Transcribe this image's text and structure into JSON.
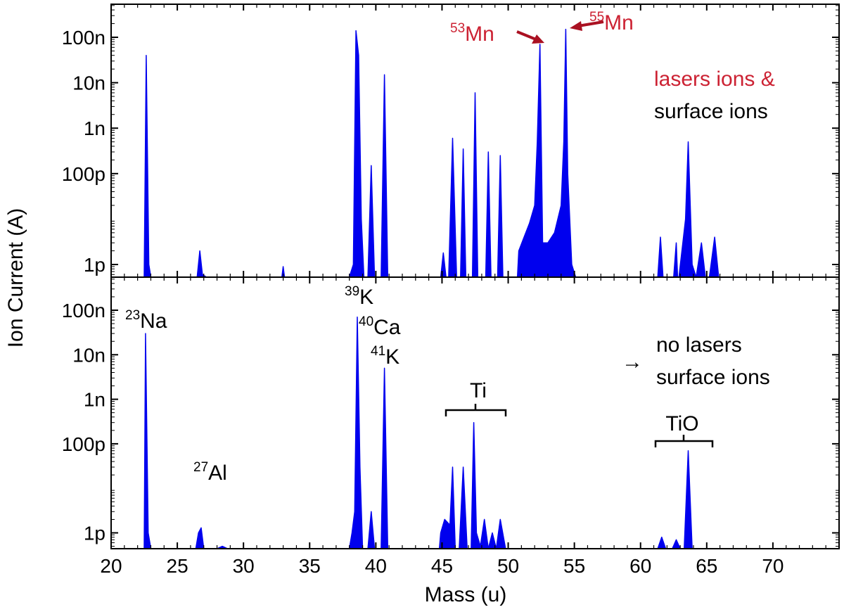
{
  "figure": {
    "xlabel": "Mass (u)",
    "ylabel": "Ion Current (A)"
  },
  "chart_data": [
    {
      "type": "area",
      "panel": "top",
      "xlim": [
        20,
        75
      ],
      "ylim": [
        1e-14,
        5e-07
      ],
      "yscale": "log",
      "xticks": [
        20,
        25,
        30,
        35,
        40,
        45,
        50,
        55,
        60,
        65,
        70
      ],
      "xtick_labels": [
        "20",
        "25",
        "30",
        "35",
        "40",
        "45",
        "50",
        "55",
        "60",
        "65",
        "70"
      ],
      "yticks": [
        1e-12,
        1e-10,
        1e-09,
        1e-08,
        1e-07
      ],
      "ytick_labels": [
        "1p",
        "100p",
        "1n",
        "10n",
        "100n"
      ],
      "color": "#0000ee",
      "annotations": {
        "mn53": {
          "sup": "53",
          "base": "Mn",
          "x": 52.4,
          "y": 7e-08,
          "color": "#cc2233"
        },
        "mn55": {
          "sup": "55",
          "base": "Mn",
          "x": 54.3,
          "y": 1.5e-07,
          "color": "#cc2233"
        },
        "line1": {
          "text": "lasers ions &",
          "color": "#cc2233"
        },
        "line2": {
          "text": "surface ions",
          "color": "#000000"
        }
      },
      "series": [
        {
          "x": [
            20,
            22.5,
            22.65,
            22.85,
            23.0,
            75
          ],
          "y": [
            1e-14,
            1e-14,
            4e-08,
            1e-12,
            1e-14,
            1e-14
          ]
        },
        {
          "x": [
            26.4,
            26.5,
            26.7,
            26.9,
            27.2,
            27.6,
            28.0,
            28.4,
            28.8,
            29.2,
            29.6,
            30.0,
            30.4,
            30.8,
            31.2,
            31.6,
            32.0
          ],
          "y": [
            1e-14,
            5e-13,
            2e-12,
            6e-13,
            3e-13,
            4e-13,
            3e-13,
            4e-13,
            4e-13,
            3e-13,
            2.5e-13,
            3e-13,
            3e-13,
            2e-13,
            1e-13,
            3e-14,
            1e-14
          ]
        },
        {
          "x": [
            32.6,
            32.9,
            33.0,
            33.1
          ],
          "y": [
            1e-14,
            2e-13,
            9e-13,
            1e-14
          ]
        },
        {
          "x": [
            38.0,
            38.3,
            38.5,
            38.7,
            38.9,
            39.1,
            39.3
          ],
          "y": [
            1e-14,
            1e-12,
            1.4e-07,
            4e-08,
            1e-11,
            1e-13,
            1e-14
          ]
        },
        {
          "x": [
            39.4,
            39.65,
            39.9
          ],
          "y": [
            1e-14,
            1.5e-10,
            1e-14
          ]
        },
        {
          "x": [
            40.4,
            40.65,
            40.9
          ],
          "y": [
            1e-14,
            1.5e-08,
            1e-14
          ]
        },
        {
          "x": [
            44.9,
            45.1,
            45.3
          ],
          "y": [
            1e-14,
            1.8e-12,
            1e-14
          ]
        },
        {
          "x": [
            45.5,
            45.8,
            46.1
          ],
          "y": [
            1e-14,
            6e-10,
            1e-14
          ]
        },
        {
          "x": [
            46.4,
            46.6,
            46.8
          ],
          "y": [
            1e-14,
            3.5e-10,
            1e-14
          ]
        },
        {
          "x": [
            47.3,
            47.5,
            47.7
          ],
          "y": [
            1e-14,
            6e-09,
            1e-14
          ]
        },
        {
          "x": [
            48.3,
            48.5,
            48.7
          ],
          "y": [
            1e-14,
            3e-10,
            1e-14
          ]
        },
        {
          "x": [
            49.2,
            49.4,
            49.6
          ],
          "y": [
            1e-14,
            2.5e-10,
            1e-14
          ]
        },
        {
          "x": [
            50.7,
            50.8,
            51.2,
            51.6,
            52.0,
            52.2,
            52.4,
            52.6,
            53.0,
            53.5,
            54.0,
            54.2,
            54.35,
            54.5,
            54.8,
            55.1
          ],
          "y": [
            1e-14,
            2e-12,
            4e-12,
            8e-12,
            2e-11,
            5e-10,
            7e-08,
            3e-12,
            3e-12,
            5e-12,
            2e-11,
            5e-10,
            1.5e-07,
            1e-10,
            1e-12,
            1e-14
          ]
        },
        {
          "x": [
            55.2,
            55.35,
            55.5
          ],
          "y": [
            1e-14,
            3e-13,
            1e-14
          ]
        },
        {
          "x": [
            56.1,
            56.2,
            56.3
          ],
          "y": [
            1e-14,
            4e-13,
            1e-14
          ]
        },
        {
          "x": [
            61.3,
            61.5,
            61.7
          ],
          "y": [
            1e-14,
            4e-12,
            1e-14
          ]
        },
        {
          "x": [
            62.5,
            62.7,
            62.8
          ],
          "y": [
            1e-14,
            3e-12,
            1e-14
          ]
        },
        {
          "x": [
            62.9,
            63.4,
            63.6,
            63.9,
            64.2,
            64.6,
            64.9,
            65.2,
            65.6,
            65.9,
            66.2,
            66.5,
            66.8,
            67.2,
            67.6,
            68.0,
            70.0,
            72.0,
            74.0,
            75.0
          ],
          "y": [
            2e-13,
            1e-11,
            5e-10,
            1e-12,
            4e-13,
            3e-12,
            3e-13,
            5e-13,
            4e-12,
            2e-13,
            4e-13,
            3e-13,
            1e-13,
            1e-13,
            2e-13,
            2e-13,
            2e-13,
            2e-13,
            2e-13,
            1.5e-13
          ]
        }
      ]
    },
    {
      "type": "area",
      "panel": "bottom",
      "xlim": [
        20,
        75
      ],
      "ylim": [
        1e-14,
        5e-07
      ],
      "yscale": "log",
      "xticks": [
        20,
        25,
        30,
        35,
        40,
        45,
        50,
        55,
        60,
        65,
        70
      ],
      "xtick_labels": [
        "20",
        "25",
        "30",
        "35",
        "40",
        "45",
        "50",
        "55",
        "60",
        "65",
        "70"
      ],
      "yticks": [
        1e-12,
        1e-10,
        1e-09,
        1e-08,
        1e-07
      ],
      "ytick_labels": [
        "1p",
        "100p",
        "1n",
        "10n",
        "100n"
      ],
      "color": "#0000ee",
      "annotations": {
        "na23": {
          "sup": "23",
          "base": "Na"
        },
        "al27": {
          "sup": "27",
          "base": "Al"
        },
        "k39": {
          "sup": "39",
          "base": "K"
        },
        "ca40": {
          "sup": "40",
          "base": "Ca"
        },
        "k41": {
          "sup": "41",
          "base": "K"
        },
        "ti": {
          "text": "Ti",
          "x_range": [
            45.3,
            49.7
          ]
        },
        "tio": {
          "text": "TiO",
          "x_range": [
            61.3,
            65.3
          ]
        },
        "arrow": {
          "text": "→"
        },
        "line1": {
          "text": "no lasers"
        },
        "line2": {
          "text": "surface ions"
        }
      },
      "series": [
        {
          "x": [
            20,
            22.5,
            22.6,
            22.8,
            23.0,
            75
          ],
          "y": [
            1e-14,
            1e-14,
            3e-08,
            1e-12,
            1e-14,
            1e-14
          ]
        },
        {
          "x": [
            26.4,
            26.6,
            26.8,
            27.0,
            27.3,
            27.6,
            28.0,
            28.4,
            28.8,
            29.2,
            29.6,
            30.0,
            30.4,
            30.8,
            31.2,
            31.6,
            32.0
          ],
          "y": [
            1e-14,
            1e-12,
            1.3e-12,
            4e-13,
            2e-13,
            4e-13,
            3e-13,
            5e-13,
            4e-13,
            2e-13,
            2e-13,
            3e-13,
            2.5e-13,
            2e-13,
            1e-13,
            3e-14,
            1e-14
          ]
        },
        {
          "x": [
            32.8,
            33.0,
            33.1
          ],
          "y": [
            1e-14,
            3e-13,
            1e-14
          ]
        },
        {
          "x": [
            38.0,
            38.2,
            38.4,
            38.6,
            38.8,
            39.0,
            39.2
          ],
          "y": [
            1e-14,
            1e-12,
            3e-12,
            7e-08,
            3e-11,
            2e-13,
            1e-14
          ]
        },
        {
          "x": [
            39.4,
            39.65,
            39.9
          ],
          "y": [
            1e-14,
            3e-12,
            1e-14
          ]
        },
        {
          "x": [
            40.4,
            40.65,
            40.9
          ],
          "y": [
            1e-14,
            5e-09,
            1e-14
          ]
        },
        {
          "x": [
            44.8,
            44.9,
            45.2,
            45.6,
            45.8,
            46.0,
            46.3,
            46.6,
            46.9,
            47.2,
            47.4,
            47.6,
            47.9,
            48.2,
            48.5,
            48.8,
            49.1,
            49.4,
            49.8,
            50.2,
            50.6,
            51.0,
            51.5,
            52.0,
            52.5,
            53.0,
            53.5,
            54.0,
            54.5,
            55.0,
            55.5,
            56.0,
            57.0,
            58.0,
            59.0,
            60.0
          ],
          "y": [
            1e-14,
            1e-12,
            2e-12,
            1.5e-12,
            3e-11,
            2e-13,
            2e-13,
            3e-11,
            1.5e-13,
            1e-13,
            3e-10,
            1e-12,
            5e-13,
            2e-12,
            1e-13,
            1e-12,
            5e-14,
            2e-12,
            2e-13,
            1e-13,
            1e-13,
            2e-13,
            3e-13,
            4e-13,
            3e-13,
            2.5e-13,
            1.5e-13,
            1e-13,
            6e-14,
            5e-14,
            3e-14,
            2e-14,
            1.5e-14,
            1.2e-14,
            1.1e-14,
            1e-14
          ]
        },
        {
          "x": [
            61.3,
            61.6,
            61.9
          ],
          "y": [
            1e-14,
            8e-13,
            1e-14
          ]
        },
        {
          "x": [
            62.4,
            62.7,
            63.0
          ],
          "y": [
            1e-14,
            7e-13,
            1e-14
          ]
        },
        {
          "x": [
            63.3,
            63.6,
            63.9
          ],
          "y": [
            1e-14,
            7e-11,
            1e-14
          ]
        },
        {
          "x": [
            64.3,
            64.5,
            64.7
          ],
          "y": [
            1e-14,
            4e-13,
            1e-14
          ]
        },
        {
          "x": [
            65.3,
            65.5,
            65.8
          ],
          "y": [
            1e-14,
            4e-13,
            1e-14
          ]
        }
      ]
    }
  ]
}
